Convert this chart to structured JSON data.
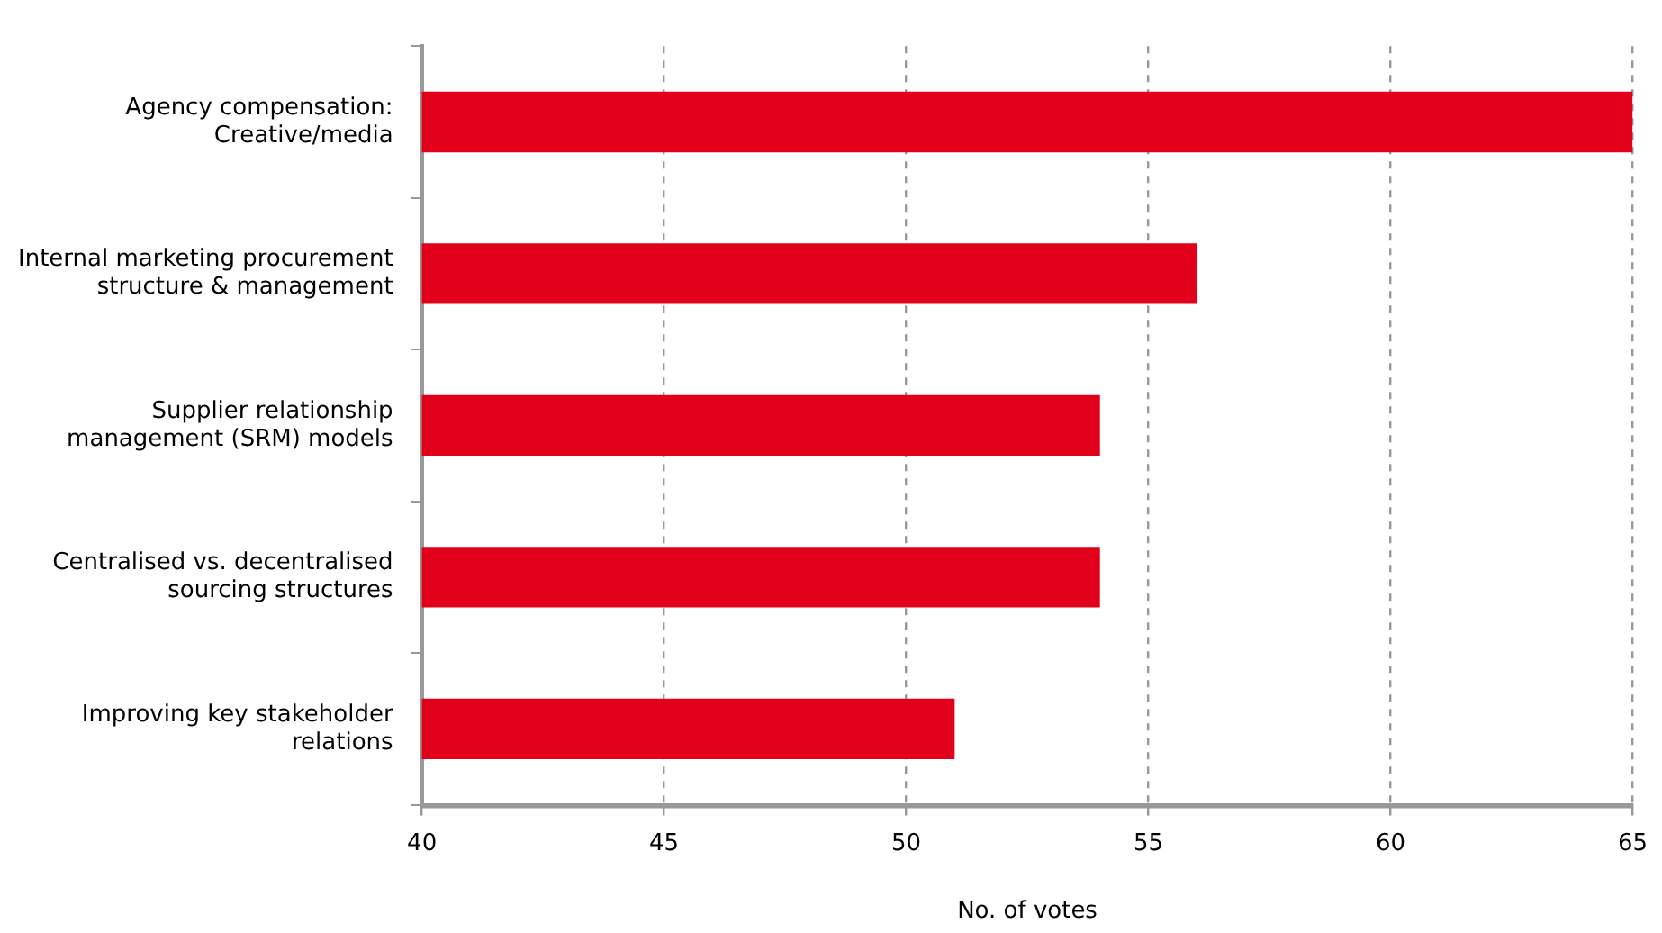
{
  "chart_data": {
    "type": "bar",
    "orientation": "horizontal",
    "categories": [
      "Agency compensation:\nCreative/media",
      "Internal marketing procurement\nstructure & management",
      "Supplier relationship\nmanagement (SRM) models",
      "Centralised vs. decentralised\nsourcing structures",
      "Improving key stakeholder\nrelations"
    ],
    "values": [
      65,
      56,
      54,
      54,
      51
    ],
    "color": "#e2001a",
    "xlabel": "No. of votes",
    "xlim": [
      40,
      65
    ],
    "xticks": [
      40,
      45,
      50,
      55,
      60,
      65
    ],
    "grid": "x"
  }
}
